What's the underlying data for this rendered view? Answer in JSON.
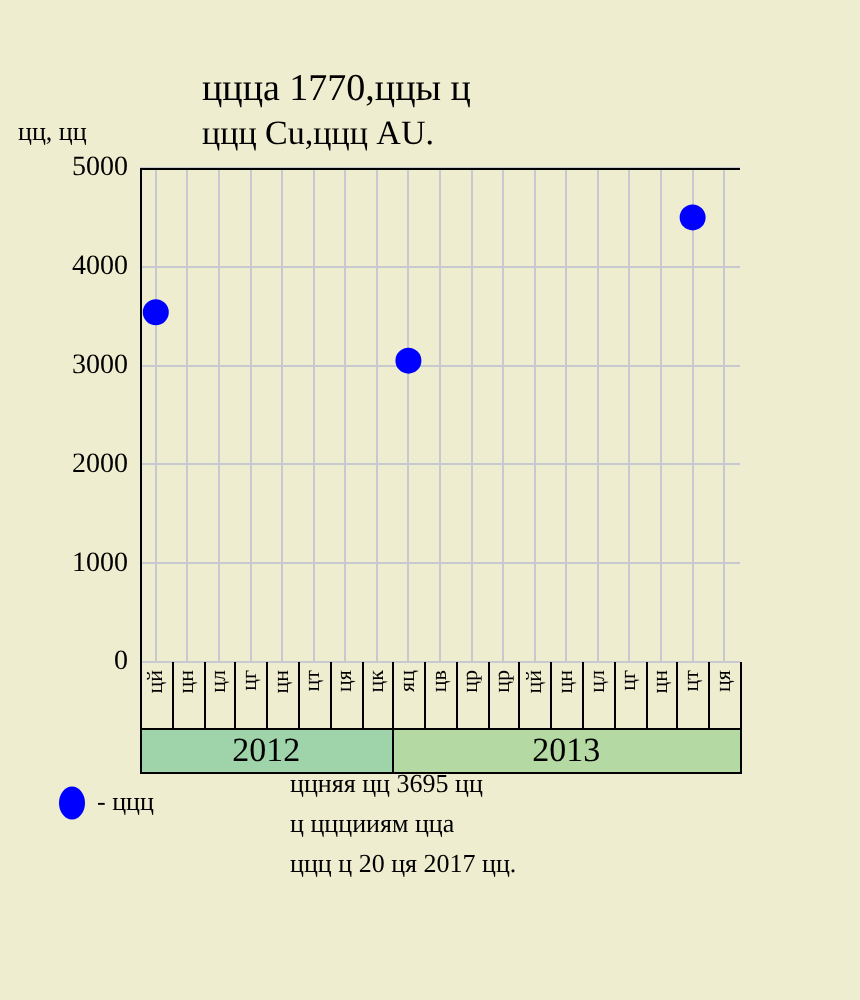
{
  "chart_data": {
    "type": "scatter",
    "title": "ццца 1770,ццы ц",
    "subtitle": "ццц Cu,ццц AU.",
    "ylabel": "цц, цц",
    "categories": [
      "цй",
      "цн",
      "цл",
      "цг",
      "цн",
      "цт",
      "ця",
      "цк",
      "яц",
      "цв",
      "цр",
      "цр",
      "цй",
      "цн",
      "цл",
      "цг",
      "цн",
      "цт",
      "ця"
    ],
    "series": [
      {
        "name": "- ццц",
        "color": "#0000ff",
        "values": [
          3540,
          null,
          null,
          null,
          null,
          null,
          null,
          null,
          3050,
          null,
          null,
          null,
          null,
          null,
          null,
          null,
          null,
          4500,
          null
        ]
      }
    ],
    "ylim": [
      0,
      5000
    ],
    "yticks": [
      0,
      1000,
      2000,
      3000,
      4000,
      5000
    ],
    "grid": true,
    "legend": "bottom left",
    "marker": "circle",
    "annotations": [
      "2012",
      "2013",
      "ццняя цц 3695 цц",
      "ц цццииям цца",
      "ццц ц 20 ця 2017 цц."
    ]
  }
}
